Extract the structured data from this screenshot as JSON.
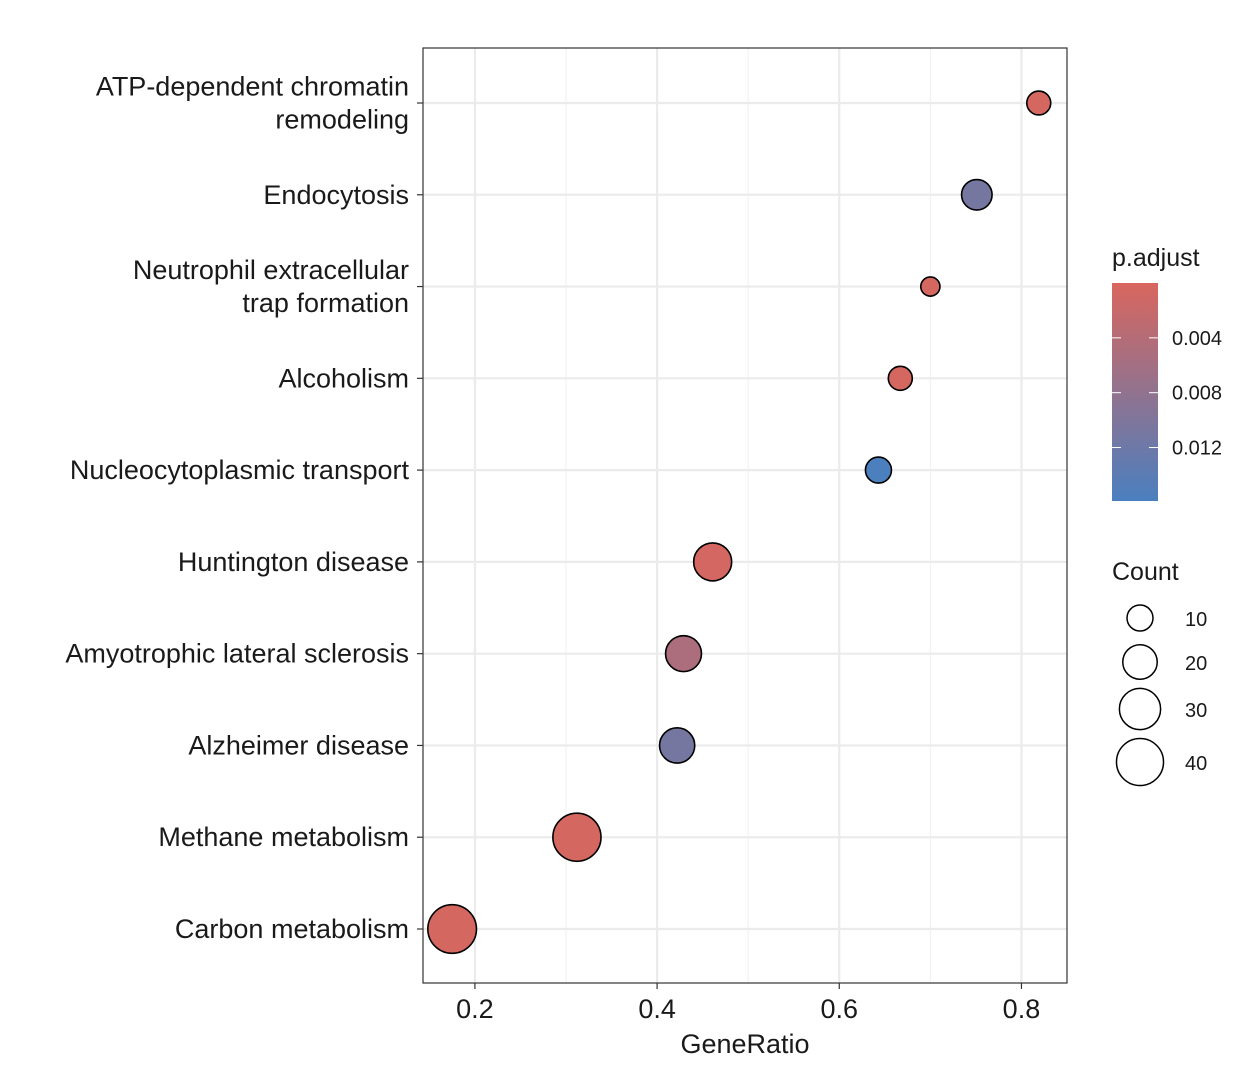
{
  "chart_data": {
    "type": "scatter",
    "title": "",
    "xlabel": "GeneRatio",
    "ylabel": "",
    "xlim": [
      0.143,
      0.85
    ],
    "xticks": [
      0.2,
      0.4,
      0.6,
      0.8
    ],
    "xtick_labels": [
      "0.2",
      "0.4",
      "0.6",
      "0.8"
    ],
    "grid": true,
    "categories": [
      {
        "lines": [
          "ATP-dependent chromatin",
          "remodeling"
        ],
        "gene_ratio": 0.819,
        "count": 8,
        "p_adjust": 0.0005
      },
      {
        "lines": [
          "Endocytosis"
        ],
        "gene_ratio": 0.751,
        "count": 15,
        "p_adjust": 0.011
      },
      {
        "lines": [
          "Neutrophil extracellular",
          "trap formation"
        ],
        "gene_ratio": 0.7,
        "count": 4,
        "p_adjust": 0.0005
      },
      {
        "lines": [
          "Alcoholism"
        ],
        "gene_ratio": 0.667,
        "count": 8,
        "p_adjust": 0.0005
      },
      {
        "lines": [
          "Nucleocytoplasmic transport"
        ],
        "gene_ratio": 0.643,
        "count": 10,
        "p_adjust": 0.0158
      },
      {
        "lines": [
          "Huntington disease"
        ],
        "gene_ratio": 0.461,
        "count": 25,
        "p_adjust": 0.0006
      },
      {
        "lines": [
          "Amyotrophic lateral sclerosis"
        ],
        "gene_ratio": 0.429,
        "count": 22,
        "p_adjust": 0.005
      },
      {
        "lines": [
          "Alzheimer disease"
        ],
        "gene_ratio": 0.422,
        "count": 21,
        "p_adjust": 0.011
      },
      {
        "lines": [
          "Methane metabolism"
        ],
        "gene_ratio": 0.312,
        "count": 42,
        "p_adjust": 0.0005
      },
      {
        "lines": [
          "Carbon metabolism"
        ],
        "gene_ratio": 0.175,
        "count": 43,
        "p_adjust": 0.0005
      }
    ],
    "color_legend": {
      "title": "p.adjust",
      "range": [
        0.0,
        0.0159
      ],
      "ticks": [
        0.004,
        0.008,
        0.012
      ],
      "tick_labels": [
        "0.004",
        "0.008",
        "0.012"
      ],
      "low_color": "#D9665E",
      "high_color": "#4A7FBF",
      "placement": "right"
    },
    "size_legend": {
      "title": "Count",
      "values": [
        10,
        20,
        30,
        40
      ],
      "labels": [
        "10",
        "20",
        "30",
        "40"
      ],
      "placement": "right"
    }
  }
}
